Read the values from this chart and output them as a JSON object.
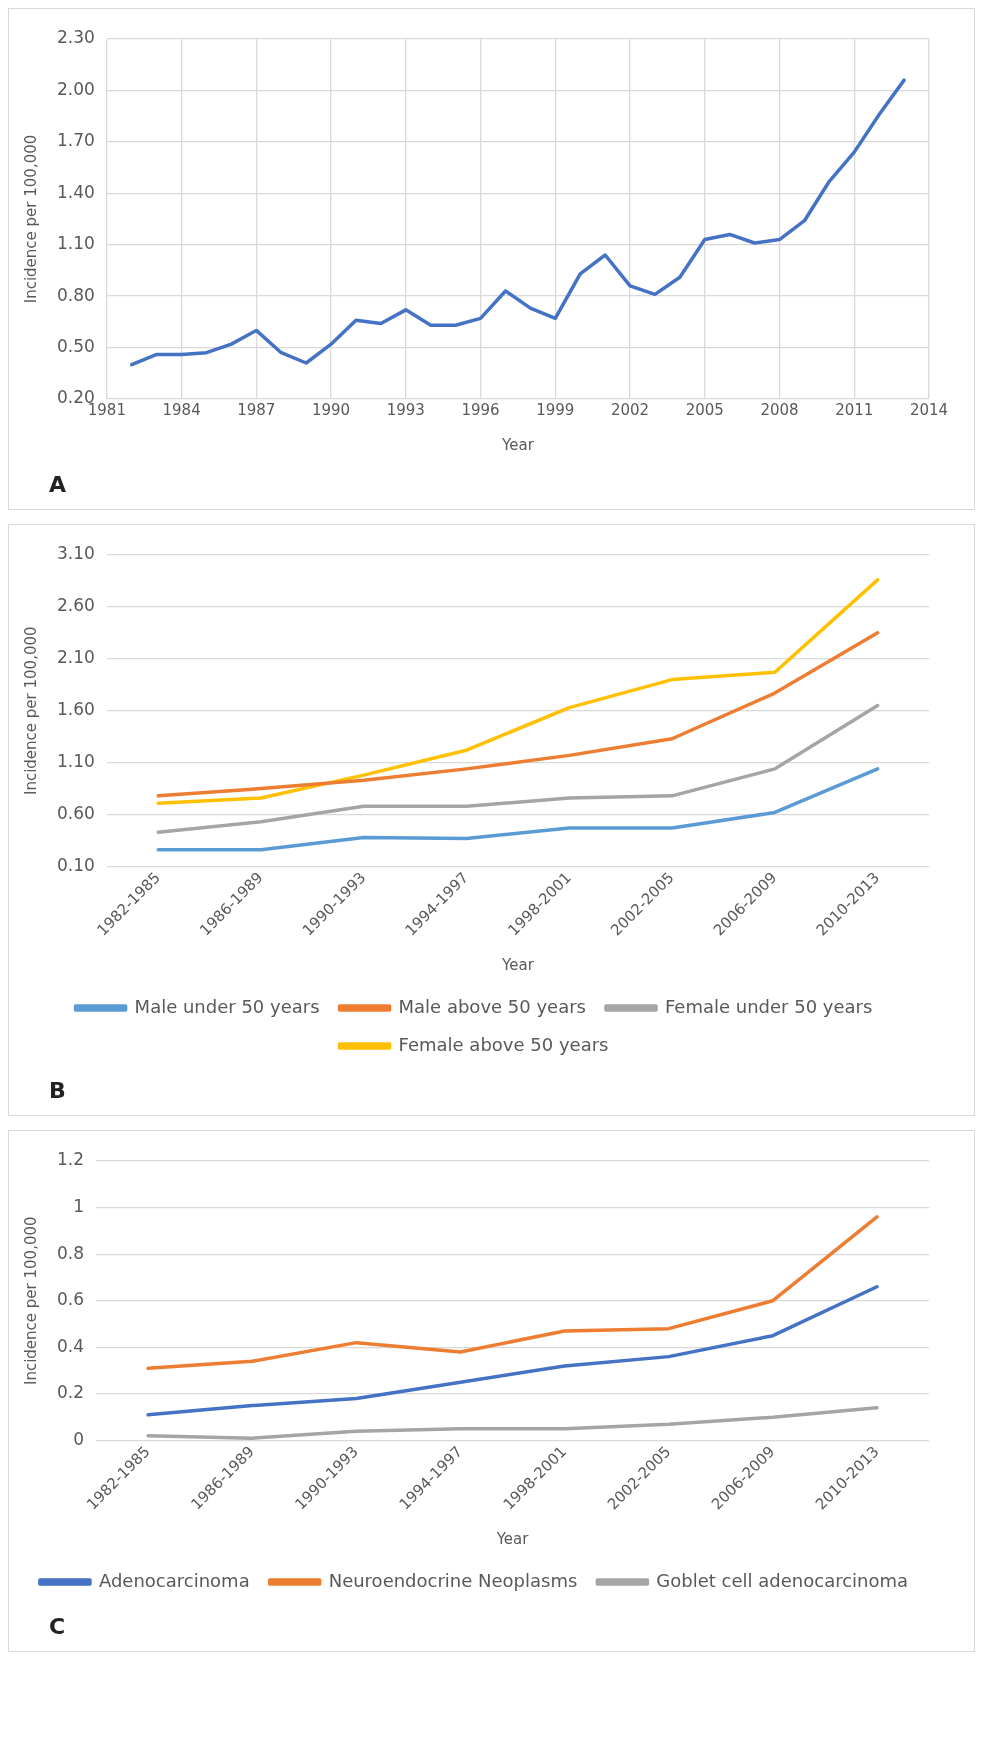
{
  "chart_data": [
    {
      "type": "line",
      "xlabel": "Year",
      "ylabel": "Incidence per 100,000",
      "annotations": [
        "A"
      ],
      "grid": true,
      "legend": false,
      "marker": "none",
      "x": [
        1982,
        1983,
        1984,
        1985,
        1986,
        1987,
        1988,
        1989,
        1990,
        1991,
        1992,
        1993,
        1994,
        1995,
        1996,
        1997,
        1998,
        1999,
        2000,
        2001,
        2002,
        2003,
        2004,
        2005,
        2006,
        2007,
        2008,
        2009,
        2010,
        2011,
        2012,
        2013
      ],
      "series": [
        {
          "color": "#4472c4",
          "values": [
            0.4,
            0.46,
            0.46,
            0.47,
            0.52,
            0.6,
            0.47,
            0.41,
            0.52,
            0.66,
            0.64,
            0.72,
            0.63,
            0.63,
            0.67,
            0.83,
            0.73,
            0.67,
            0.93,
            1.04,
            0.86,
            0.81,
            0.91,
            1.13,
            1.16,
            1.11,
            1.13,
            1.24,
            1.47,
            1.64,
            1.86,
            2.06
          ]
        }
      ],
      "xlim": [
        1981,
        2014
      ],
      "xticks": [
        1981,
        1984,
        1987,
        1990,
        1993,
        1996,
        1999,
        2002,
        2005,
        2008,
        2011,
        2014
      ],
      "ylim": [
        0.2,
        2.3
      ],
      "yticks": [
        {
          "value": 0.2,
          "label": "0.20"
        },
        {
          "value": 0.5,
          "label": "0.50"
        },
        {
          "value": 0.8,
          "label": "0.80"
        },
        {
          "value": 1.1,
          "label": "1.10"
        },
        {
          "value": 1.4,
          "label": "1.40"
        },
        {
          "value": 1.7,
          "label": "1.70"
        },
        {
          "value": 2.0,
          "label": "2.00"
        },
        {
          "value": 2.3,
          "label": "2.30"
        }
      ]
    },
    {
      "type": "line",
      "xlabel": "Year",
      "ylabel": "Incidence per 100,000",
      "annotations": [
        "B"
      ],
      "grid": "y",
      "legend": "bottom",
      "marker": "none",
      "categories": [
        "1982-1985",
        "1986-1989",
        "1990-1993",
        "1994-1997",
        "1998-2001",
        "2002-2005",
        "2006-2009",
        "2010-2013"
      ],
      "series": [
        {
          "name": "Male under 50 years",
          "color": "#5b9bd5",
          "values": [
            0.26,
            0.26,
            0.38,
            0.37,
            0.47,
            0.47,
            0.62,
            1.04
          ]
        },
        {
          "name": "Male above 50 years",
          "color": "#ed7d31",
          "values": [
            0.78,
            0.85,
            0.93,
            1.04,
            1.17,
            1.33,
            1.77,
            2.35
          ]
        },
        {
          "name": "Female under 50 years",
          "color": "#a5a5a5",
          "values": [
            0.43,
            0.53,
            0.68,
            0.68,
            0.76,
            0.78,
            1.04,
            1.65
          ]
        },
        {
          "name": "Female above 50 years",
          "color": "#ffc000",
          "values": [
            0.71,
            0.76,
            0.98,
            1.22,
            1.63,
            1.9,
            1.97,
            2.86
          ]
        }
      ],
      "ylim": [
        0.1,
        3.1
      ],
      "yticks": [
        {
          "value": 0.1,
          "label": "0.10"
        },
        {
          "value": 0.6,
          "label": "0.60"
        },
        {
          "value": 1.1,
          "label": "1.10"
        },
        {
          "value": 1.6,
          "label": "1.60"
        },
        {
          "value": 2.1,
          "label": "2.10"
        },
        {
          "value": 2.6,
          "label": "2.60"
        },
        {
          "value": 3.1,
          "label": "3.10"
        }
      ]
    },
    {
      "type": "line",
      "xlabel": "Year",
      "ylabel": "Incidence per 100,000",
      "annotations": [
        "C"
      ],
      "grid": "y",
      "legend": "bottom",
      "marker": "none",
      "categories": [
        "1982-1985",
        "1986-1989",
        "1990-1993",
        "1994-1997",
        "1998-2001",
        "2002-2005",
        "2006-2009",
        "2010-2013"
      ],
      "series": [
        {
          "name": "Adenocarcinoma",
          "color": "#4472c4",
          "values": [
            0.11,
            0.15,
            0.18,
            0.25,
            0.32,
            0.36,
            0.45,
            0.66
          ]
        },
        {
          "name": "Neuroendocrine Neoplasms",
          "color": "#ed7d31",
          "values": [
            0.31,
            0.34,
            0.42,
            0.38,
            0.47,
            0.48,
            0.6,
            0.96
          ]
        },
        {
          "name": "Goblet cell adenocarcinoma",
          "color": "#a5a5a5",
          "values": [
            0.02,
            0.01,
            0.04,
            0.05,
            0.05,
            0.07,
            0.1,
            0.14
          ]
        }
      ],
      "ylim": [
        0,
        1.2
      ],
      "yticks": [
        0,
        0.2,
        0.4,
        0.6,
        0.8,
        1,
        1.2
      ]
    }
  ]
}
